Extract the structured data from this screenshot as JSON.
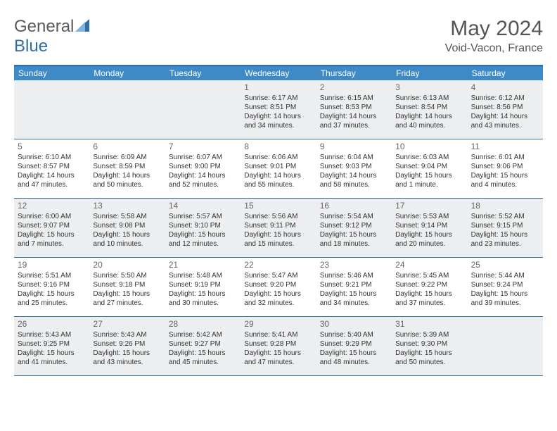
{
  "brand": {
    "part1": "General",
    "part2": "Blue"
  },
  "title": "May 2024",
  "location": "Void-Vacon, France",
  "colors": {
    "header_bg": "#3d8ac7",
    "border": "#2f6fa7",
    "gray_row": "#eceef0",
    "text": "#333333",
    "muted": "#666666"
  },
  "day_names": [
    "Sunday",
    "Monday",
    "Tuesday",
    "Wednesday",
    "Thursday",
    "Friday",
    "Saturday"
  ],
  "cells": [
    {
      "day": "",
      "sunrise": "",
      "sunset": "",
      "daylight_a": "",
      "daylight_b": ""
    },
    {
      "day": "",
      "sunrise": "",
      "sunset": "",
      "daylight_a": "",
      "daylight_b": ""
    },
    {
      "day": "",
      "sunrise": "",
      "sunset": "",
      "daylight_a": "",
      "daylight_b": ""
    },
    {
      "day": "1",
      "sunrise": "Sunrise: 6:17 AM",
      "sunset": "Sunset: 8:51 PM",
      "daylight_a": "Daylight: 14 hours",
      "daylight_b": "and 34 minutes."
    },
    {
      "day": "2",
      "sunrise": "Sunrise: 6:15 AM",
      "sunset": "Sunset: 8:53 PM",
      "daylight_a": "Daylight: 14 hours",
      "daylight_b": "and 37 minutes."
    },
    {
      "day": "3",
      "sunrise": "Sunrise: 6:13 AM",
      "sunset": "Sunset: 8:54 PM",
      "daylight_a": "Daylight: 14 hours",
      "daylight_b": "and 40 minutes."
    },
    {
      "day": "4",
      "sunrise": "Sunrise: 6:12 AM",
      "sunset": "Sunset: 8:56 PM",
      "daylight_a": "Daylight: 14 hours",
      "daylight_b": "and 43 minutes."
    },
    {
      "day": "5",
      "sunrise": "Sunrise: 6:10 AM",
      "sunset": "Sunset: 8:57 PM",
      "daylight_a": "Daylight: 14 hours",
      "daylight_b": "and 47 minutes."
    },
    {
      "day": "6",
      "sunrise": "Sunrise: 6:09 AM",
      "sunset": "Sunset: 8:59 PM",
      "daylight_a": "Daylight: 14 hours",
      "daylight_b": "and 50 minutes."
    },
    {
      "day": "7",
      "sunrise": "Sunrise: 6:07 AM",
      "sunset": "Sunset: 9:00 PM",
      "daylight_a": "Daylight: 14 hours",
      "daylight_b": "and 52 minutes."
    },
    {
      "day": "8",
      "sunrise": "Sunrise: 6:06 AM",
      "sunset": "Sunset: 9:01 PM",
      "daylight_a": "Daylight: 14 hours",
      "daylight_b": "and 55 minutes."
    },
    {
      "day": "9",
      "sunrise": "Sunrise: 6:04 AM",
      "sunset": "Sunset: 9:03 PM",
      "daylight_a": "Daylight: 14 hours",
      "daylight_b": "and 58 minutes."
    },
    {
      "day": "10",
      "sunrise": "Sunrise: 6:03 AM",
      "sunset": "Sunset: 9:04 PM",
      "daylight_a": "Daylight: 15 hours",
      "daylight_b": "and 1 minute."
    },
    {
      "day": "11",
      "sunrise": "Sunrise: 6:01 AM",
      "sunset": "Sunset: 9:06 PM",
      "daylight_a": "Daylight: 15 hours",
      "daylight_b": "and 4 minutes."
    },
    {
      "day": "12",
      "sunrise": "Sunrise: 6:00 AM",
      "sunset": "Sunset: 9:07 PM",
      "daylight_a": "Daylight: 15 hours",
      "daylight_b": "and 7 minutes."
    },
    {
      "day": "13",
      "sunrise": "Sunrise: 5:58 AM",
      "sunset": "Sunset: 9:08 PM",
      "daylight_a": "Daylight: 15 hours",
      "daylight_b": "and 10 minutes."
    },
    {
      "day": "14",
      "sunrise": "Sunrise: 5:57 AM",
      "sunset": "Sunset: 9:10 PM",
      "daylight_a": "Daylight: 15 hours",
      "daylight_b": "and 12 minutes."
    },
    {
      "day": "15",
      "sunrise": "Sunrise: 5:56 AM",
      "sunset": "Sunset: 9:11 PM",
      "daylight_a": "Daylight: 15 hours",
      "daylight_b": "and 15 minutes."
    },
    {
      "day": "16",
      "sunrise": "Sunrise: 5:54 AM",
      "sunset": "Sunset: 9:12 PM",
      "daylight_a": "Daylight: 15 hours",
      "daylight_b": "and 18 minutes."
    },
    {
      "day": "17",
      "sunrise": "Sunrise: 5:53 AM",
      "sunset": "Sunset: 9:14 PM",
      "daylight_a": "Daylight: 15 hours",
      "daylight_b": "and 20 minutes."
    },
    {
      "day": "18",
      "sunrise": "Sunrise: 5:52 AM",
      "sunset": "Sunset: 9:15 PM",
      "daylight_a": "Daylight: 15 hours",
      "daylight_b": "and 23 minutes."
    },
    {
      "day": "19",
      "sunrise": "Sunrise: 5:51 AM",
      "sunset": "Sunset: 9:16 PM",
      "daylight_a": "Daylight: 15 hours",
      "daylight_b": "and 25 minutes."
    },
    {
      "day": "20",
      "sunrise": "Sunrise: 5:50 AM",
      "sunset": "Sunset: 9:18 PM",
      "daylight_a": "Daylight: 15 hours",
      "daylight_b": "and 27 minutes."
    },
    {
      "day": "21",
      "sunrise": "Sunrise: 5:48 AM",
      "sunset": "Sunset: 9:19 PM",
      "daylight_a": "Daylight: 15 hours",
      "daylight_b": "and 30 minutes."
    },
    {
      "day": "22",
      "sunrise": "Sunrise: 5:47 AM",
      "sunset": "Sunset: 9:20 PM",
      "daylight_a": "Daylight: 15 hours",
      "daylight_b": "and 32 minutes."
    },
    {
      "day": "23",
      "sunrise": "Sunrise: 5:46 AM",
      "sunset": "Sunset: 9:21 PM",
      "daylight_a": "Daylight: 15 hours",
      "daylight_b": "and 34 minutes."
    },
    {
      "day": "24",
      "sunrise": "Sunrise: 5:45 AM",
      "sunset": "Sunset: 9:22 PM",
      "daylight_a": "Daylight: 15 hours",
      "daylight_b": "and 37 minutes."
    },
    {
      "day": "25",
      "sunrise": "Sunrise: 5:44 AM",
      "sunset": "Sunset: 9:24 PM",
      "daylight_a": "Daylight: 15 hours",
      "daylight_b": "and 39 minutes."
    },
    {
      "day": "26",
      "sunrise": "Sunrise: 5:43 AM",
      "sunset": "Sunset: 9:25 PM",
      "daylight_a": "Daylight: 15 hours",
      "daylight_b": "and 41 minutes."
    },
    {
      "day": "27",
      "sunrise": "Sunrise: 5:43 AM",
      "sunset": "Sunset: 9:26 PM",
      "daylight_a": "Daylight: 15 hours",
      "daylight_b": "and 43 minutes."
    },
    {
      "day": "28",
      "sunrise": "Sunrise: 5:42 AM",
      "sunset": "Sunset: 9:27 PM",
      "daylight_a": "Daylight: 15 hours",
      "daylight_b": "and 45 minutes."
    },
    {
      "day": "29",
      "sunrise": "Sunrise: 5:41 AM",
      "sunset": "Sunset: 9:28 PM",
      "daylight_a": "Daylight: 15 hours",
      "daylight_b": "and 47 minutes."
    },
    {
      "day": "30",
      "sunrise": "Sunrise: 5:40 AM",
      "sunset": "Sunset: 9:29 PM",
      "daylight_a": "Daylight: 15 hours",
      "daylight_b": "and 48 minutes."
    },
    {
      "day": "31",
      "sunrise": "Sunrise: 5:39 AM",
      "sunset": "Sunset: 9:30 PM",
      "daylight_a": "Daylight: 15 hours",
      "daylight_b": "and 50 minutes."
    },
    {
      "day": "",
      "sunrise": "",
      "sunset": "",
      "daylight_a": "",
      "daylight_b": ""
    }
  ]
}
